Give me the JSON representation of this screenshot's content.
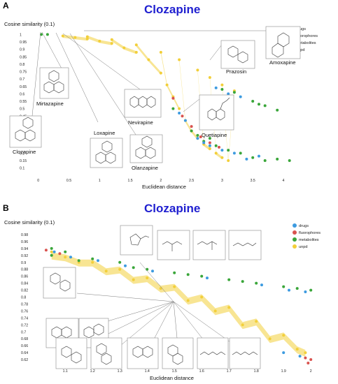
{
  "colors": {
    "title": "#1f1fd0",
    "drugs": "#3d9be0",
    "fluorophores": "#d9534f",
    "metabolites": "#3aa63a",
    "unpd": "#f2cf3a"
  },
  "panels": [
    {
      "letter": "A",
      "title": "Clozapine",
      "ylabel": "Cosine similarity (0.1)",
      "xlabel": "Euclidean distance",
      "molecule_labels": [
        "Amoxapine",
        "Prazosin",
        "Mirtazapine",
        "Nevirapine",
        "Quetiapine",
        "Loxapine",
        "Clozapine",
        "Olanzapine"
      ]
    },
    {
      "letter": "B",
      "title": "Clozapine",
      "ylabel": "Cosine similarity (0.1)",
      "xlabel": "Euclidean distance"
    }
  ],
  "chart_data": [
    {
      "type": "scatter",
      "title": "Clozapine",
      "xlabel": "Euclidean distance",
      "ylabel": "Cosine similarity (0.1)",
      "xlim": [
        -0.1,
        4.4
      ],
      "ylim": [
        0.07,
        1.03
      ],
      "xticks": [
        "0",
        "0.5",
        "1",
        "1.5",
        "2",
        "2.5",
        "3",
        "3.5",
        "4"
      ],
      "yticks": [
        "1",
        "0.95",
        "0.9",
        "0.85",
        "0.8",
        "0.75",
        "0.7",
        "0.65",
        "0.6",
        "0.55",
        "0.5",
        "0.45",
        "0.4",
        "0.35",
        "0.3",
        "0.25",
        "0.2",
        "0.15",
        "0.1"
      ],
      "legend": [
        "drugs",
        "fluorophores",
        "metabolites",
        "unpd"
      ],
      "legend_position": "top-right",
      "series": [
        {
          "name": "unpd",
          "points": [
            [
              0.4,
              0.99
            ],
            [
              0.6,
              0.98
            ],
            [
              0.8,
              0.97
            ],
            [
              1.0,
              0.955
            ],
            [
              1.2,
              0.94
            ],
            [
              1.4,
              0.91
            ],
            [
              1.6,
              0.88
            ],
            [
              1.8,
              0.83
            ],
            [
              2.0,
              0.74
            ],
            [
              2.1,
              0.66
            ],
            [
              2.2,
              0.58
            ],
            [
              2.3,
              0.5
            ],
            [
              2.4,
              0.42
            ],
            [
              2.5,
              0.35
            ],
            [
              2.6,
              0.3
            ],
            [
              2.7,
              0.26
            ],
            [
              2.8,
              0.23
            ],
            [
              2.9,
              0.2
            ],
            [
              3.0,
              0.17
            ],
            [
              3.1,
              0.15
            ],
            [
              0.8,
              0.985
            ],
            [
              1.2,
              0.965
            ],
            [
              1.6,
              0.93
            ],
            [
              2.0,
              0.88
            ],
            [
              2.3,
              0.83
            ],
            [
              2.6,
              0.76
            ],
            [
              2.8,
              0.71
            ],
            [
              3.0,
              0.66
            ],
            [
              3.2,
              0.62
            ]
          ]
        },
        {
          "name": "metabolites",
          "points": [
            [
              0.05,
              1.0
            ],
            [
              0.15,
              1.0
            ],
            [
              2.2,
              0.5
            ],
            [
              2.5,
              0.35
            ],
            [
              2.7,
              0.28
            ],
            [
              2.9,
              0.25
            ],
            [
              3.1,
              0.22
            ],
            [
              3.3,
              0.2
            ],
            [
              3.5,
              0.17
            ],
            [
              3.7,
              0.15
            ],
            [
              3.9,
              0.16
            ],
            [
              4.1,
              0.15
            ],
            [
              3.5,
              0.55
            ],
            [
              3.6,
              0.53
            ],
            [
              3.7,
              0.52
            ],
            [
              3.9,
              0.49
            ],
            [
              3.0,
              0.63
            ],
            [
              3.2,
              0.61
            ],
            [
              2.6,
              0.32
            ],
            [
              2.8,
              0.3
            ]
          ]
        },
        {
          "name": "drugs",
          "points": [
            [
              2.4,
              0.42
            ],
            [
              2.6,
              0.3
            ],
            [
              2.8,
              0.25
            ],
            [
              3.0,
              0.22
            ],
            [
              3.2,
              0.2
            ],
            [
              3.4,
              0.16
            ],
            [
              3.6,
              0.18
            ],
            [
              2.9,
              0.64
            ],
            [
              3.1,
              0.6
            ],
            [
              3.3,
              0.58
            ],
            [
              2.3,
              0.47
            ],
            [
              2.7,
              0.27
            ]
          ]
        },
        {
          "name": "fluorophores",
          "points": [
            [
              2.2,
              0.57
            ],
            [
              2.35,
              0.45
            ],
            [
              2.5,
              0.38
            ],
            [
              2.65,
              0.31
            ],
            [
              2.8,
              0.27
            ],
            [
              2.95,
              0.24
            ]
          ]
        }
      ]
    },
    {
      "type": "scatter",
      "title": "Clozapine",
      "xlabel": "Euclidean distance",
      "ylabel": "Cosine similarity (0.1)",
      "xlim": [
        1.02,
        2.02
      ],
      "ylim": [
        0.6,
        1.0
      ],
      "xticks": [
        "1.1",
        "1.2",
        "1.3",
        "1.4",
        "1.5",
        "1.6",
        "1.7",
        "1.8",
        "1.9",
        "2"
      ],
      "yticks": [
        "0.98",
        "0.96",
        "0.94",
        "0.92",
        "0.9",
        "0.88",
        "0.86",
        "0.84",
        "0.82",
        "0.8",
        "0.78",
        "0.76",
        "0.74",
        "0.72",
        "0.7",
        "0.68",
        "0.66",
        "0.64",
        "0.62"
      ],
      "legend": [
        "drugs",
        "fluorophores",
        "metabolites",
        "unpd"
      ],
      "legend_position": "top-right",
      "series": [
        {
          "name": "unpd",
          "points": [
            [
              1.05,
              0.93
            ],
            [
              1.1,
              0.915
            ],
            [
              1.2,
              0.9
            ],
            [
              1.3,
              0.88
            ],
            [
              1.4,
              0.855
            ],
            [
              1.5,
              0.83
            ],
            [
              1.6,
              0.8
            ],
            [
              1.7,
              0.77
            ],
            [
              1.8,
              0.73
            ],
            [
              1.9,
              0.69
            ],
            [
              1.98,
              0.64
            ],
            [
              1.05,
              0.92
            ],
            [
              1.15,
              0.9
            ],
            [
              1.25,
              0.875
            ],
            [
              1.35,
              0.85
            ],
            [
              1.45,
              0.825
            ],
            [
              1.55,
              0.79
            ],
            [
              1.65,
              0.76
            ],
            [
              1.75,
              0.72
            ],
            [
              1.85,
              0.68
            ],
            [
              1.95,
              0.65
            ]
          ]
        },
        {
          "name": "metabolites",
          "points": [
            [
              1.05,
              0.94
            ],
            [
              1.1,
              0.93
            ],
            [
              1.2,
              0.91
            ],
            [
              1.3,
              0.9
            ],
            [
              1.4,
              0.88
            ],
            [
              1.5,
              0.87
            ],
            [
              1.6,
              0.86
            ],
            [
              1.7,
              0.85
            ],
            [
              1.8,
              0.84
            ],
            [
              1.9,
              0.83
            ],
            [
              2.0,
              0.82
            ],
            [
              1.05,
              0.92
            ],
            [
              1.15,
              0.905
            ],
            [
              1.35,
              0.885
            ],
            [
              1.55,
              0.865
            ],
            [
              1.75,
              0.845
            ],
            [
              1.95,
              0.825
            ]
          ]
        },
        {
          "name": "drugs",
          "points": [
            [
              1.06,
              0.93
            ],
            [
              1.12,
              0.915
            ],
            [
              1.22,
              0.905
            ],
            [
              1.32,
              0.89
            ],
            [
              1.42,
              0.875
            ],
            [
              1.62,
              0.855
            ],
            [
              1.82,
              0.835
            ],
            [
              1.92,
              0.82
            ],
            [
              1.98,
              0.815
            ],
            [
              1.9,
              0.64
            ],
            [
              1.96,
              0.63
            ]
          ]
        },
        {
          "name": "fluorophores",
          "points": [
            [
              1.03,
              0.935
            ],
            [
              1.08,
              0.925
            ],
            [
              1.98,
              0.625
            ],
            [
              2.0,
              0.62
            ],
            [
              1.99,
              0.61
            ]
          ]
        }
      ]
    }
  ]
}
